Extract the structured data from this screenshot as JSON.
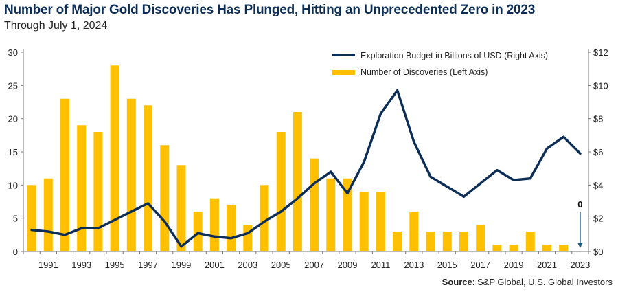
{
  "header": {
    "title": "Number of Major Gold Discoveries Has Plunged, Hitting an Unprecedented Zero in 2023",
    "subtitle": "Through July 1, 2024"
  },
  "source": {
    "label": "Source",
    "text": ": S&P Global, U.S. Global Investors"
  },
  "colors": {
    "bar": "#ffc000",
    "line": "#0c2d55",
    "axis": "#777777",
    "arrow": "#1f5a7a"
  },
  "chart_data": {
    "type": "bar",
    "title": "Number of Major Gold Discoveries Has Plunged, Hitting an Unprecedented Zero in 2023",
    "subtitle": "Through July 1, 2024",
    "categories": [
      1990,
      1991,
      1992,
      1993,
      1994,
      1995,
      1996,
      1997,
      1998,
      1999,
      2000,
      2001,
      2002,
      2003,
      2004,
      2005,
      2006,
      2007,
      2008,
      2009,
      2010,
      2011,
      2012,
      2013,
      2014,
      2015,
      2016,
      2017,
      2018,
      2019,
      2020,
      2021,
      2022,
      2023
    ],
    "x_tick_labels": [
      "1991",
      "1993",
      "1995",
      "1997",
      "1999",
      "2001",
      "2003",
      "2005",
      "2007",
      "2009",
      "2011",
      "2013",
      "2015",
      "2017",
      "2019",
      "2021",
      "2023"
    ],
    "series": [
      {
        "name": "Number of Discoveries (Left Axis)",
        "type": "bar",
        "axis": "left",
        "values": [
          10,
          11,
          23,
          19,
          18,
          28,
          23,
          22,
          16,
          13,
          6,
          8,
          7,
          4,
          10,
          18,
          21,
          14,
          11,
          11,
          9,
          9,
          3,
          6,
          3,
          3,
          3,
          4,
          1,
          1,
          3,
          1,
          1,
          0
        ]
      },
      {
        "name": "Exploration Budget in Billions of USD (Right Axis)",
        "type": "line",
        "axis": "right",
        "values": [
          1.3,
          1.2,
          1.0,
          1.4,
          1.4,
          1.9,
          2.4,
          2.9,
          1.8,
          0.3,
          1.1,
          0.9,
          0.8,
          1.1,
          1.8,
          2.4,
          3.2,
          4.1,
          4.8,
          3.5,
          5.4,
          8.3,
          9.7,
          6.6,
          4.5,
          3.9,
          3.3,
          4.1,
          4.9,
          4.3,
          4.4,
          6.2,
          6.9,
          5.9
        ]
      }
    ],
    "y_left": {
      "ylim": [
        0,
        30
      ],
      "ticks": [
        "0",
        "5",
        "10",
        "15",
        "20",
        "25",
        "30"
      ]
    },
    "y_right": {
      "ylim": [
        0,
        12
      ],
      "ticks": [
        "$0",
        "$2",
        "$4",
        "$6",
        "$8",
        "$10",
        "$12"
      ]
    },
    "annotation": {
      "text": "0",
      "year": 2023
    },
    "legend": {
      "position": "top-right",
      "items": [
        "Exploration Budget in Billions of USD (Right Axis)",
        "Number of Discoveries (Left Axis)"
      ]
    },
    "grid": false
  }
}
